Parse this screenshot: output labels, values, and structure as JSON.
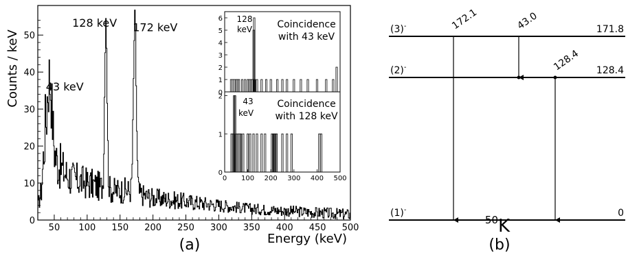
{
  "panel_a": {
    "caption": "(a)",
    "chart_data": {
      "type": "line",
      "xlabel": "Energy (keV)",
      "ylabel": "Counts / keV",
      "xlim": [
        25,
        500
      ],
      "ylim": [
        0,
        58
      ],
      "xticks": [
        50,
        100,
        150,
        200,
        250,
        300,
        350,
        400,
        450,
        500
      ],
      "yticks": [
        0,
        10,
        20,
        30,
        40,
        50
      ],
      "annotations": [
        {
          "text": "43 keV",
          "x": 43,
          "y": 38
        },
        {
          "text": "128 keV",
          "x": 128,
          "y": 56
        },
        {
          "text": "172 keV",
          "x": 172,
          "y": 54
        }
      ],
      "peaks": [
        {
          "x": 43,
          "y": 38,
          "width": 5
        },
        {
          "x": 128,
          "y": 56,
          "width": 2.5
        },
        {
          "x": 172,
          "y": 54,
          "width": 3
        }
      ],
      "background": [
        [
          25,
          4
        ],
        [
          30,
          8
        ],
        [
          35,
          22
        ],
        [
          40,
          26
        ],
        [
          45,
          20
        ],
        [
          50,
          17
        ],
        [
          60,
          14
        ],
        [
          70,
          12
        ],
        [
          80,
          11
        ],
        [
          100,
          10
        ],
        [
          120,
          9
        ],
        [
          140,
          8
        ],
        [
          160,
          8
        ],
        [
          180,
          7
        ],
        [
          200,
          6
        ],
        [
          250,
          5
        ],
        [
          300,
          4
        ],
        [
          350,
          3
        ],
        [
          400,
          2.5
        ],
        [
          450,
          2
        ],
        [
          500,
          1.5
        ]
      ]
    },
    "insets": [
      {
        "title_line1": "Coincidence",
        "title_line2": "with 43 keV",
        "peak_label": "128",
        "peak_label2": "keV",
        "chart_data": {
          "type": "bar",
          "xlim": [
            0,
            500
          ],
          "ylim": [
            0,
            6.5
          ],
          "yticks": [
            0,
            1,
            2,
            3,
            4,
            5,
            6
          ],
          "xticks": [],
          "bars": [
            {
              "x": 28,
              "y": 1
            },
            {
              "x": 35,
              "y": 1
            },
            {
              "x": 42,
              "y": 1
            },
            {
              "x": 50,
              "y": 1
            },
            {
              "x": 56,
              "y": 1
            },
            {
              "x": 62,
              "y": 1
            },
            {
              "x": 76,
              "y": 1
            },
            {
              "x": 88,
              "y": 1
            },
            {
              "x": 100,
              "y": 1
            },
            {
              "x": 106,
              "y": 1
            },
            {
              "x": 114,
              "y": 1
            },
            {
              "x": 120,
              "y": 1
            },
            {
              "x": 126,
              "y": 5
            },
            {
              "x": 128,
              "y": 6
            },
            {
              "x": 130,
              "y": 1
            },
            {
              "x": 140,
              "y": 1
            },
            {
              "x": 160,
              "y": 1
            },
            {
              "x": 180,
              "y": 1
            },
            {
              "x": 200,
              "y": 1
            },
            {
              "x": 228,
              "y": 1
            },
            {
              "x": 250,
              "y": 1
            },
            {
              "x": 270,
              "y": 1
            },
            {
              "x": 300,
              "y": 1
            },
            {
              "x": 330,
              "y": 1
            },
            {
              "x": 360,
              "y": 1
            },
            {
              "x": 400,
              "y": 1
            },
            {
              "x": 440,
              "y": 1
            },
            {
              "x": 470,
              "y": 1
            },
            {
              "x": 485,
              "y": 2
            }
          ]
        }
      },
      {
        "title_line1": "Coincidence",
        "title_line2": "with 128 keV",
        "peak_label": "43",
        "peak_label2": "keV",
        "chart_data": {
          "type": "bar",
          "xlim": [
            0,
            500
          ],
          "ylim": [
            0,
            2.1
          ],
          "yticks": [
            0,
            1,
            2
          ],
          "xticks": [
            0,
            100,
            200,
            300,
            400,
            500
          ],
          "bars": [
            {
              "x": 30,
              "y": 1
            },
            {
              "x": 36,
              "y": 1
            },
            {
              "x": 41,
              "y": 2
            },
            {
              "x": 45,
              "y": 2
            },
            {
              "x": 50,
              "y": 1
            },
            {
              "x": 58,
              "y": 1
            },
            {
              "x": 65,
              "y": 1
            },
            {
              "x": 70,
              "y": 1
            },
            {
              "x": 80,
              "y": 1
            },
            {
              "x": 100,
              "y": 1
            },
            {
              "x": 110,
              "y": 1
            },
            {
              "x": 125,
              "y": 1
            },
            {
              "x": 140,
              "y": 1
            },
            {
              "x": 160,
              "y": 1
            },
            {
              "x": 175,
              "y": 1
            },
            {
              "x": 205,
              "y": 1
            },
            {
              "x": 210,
              "y": 1
            },
            {
              "x": 215,
              "y": 1
            },
            {
              "x": 220,
              "y": 1
            },
            {
              "x": 225,
              "y": 1
            },
            {
              "x": 250,
              "y": 1
            },
            {
              "x": 270,
              "y": 1
            },
            {
              "x": 290,
              "y": 1
            },
            {
              "x": 410,
              "y": 1
            },
            {
              "x": 418,
              "y": 1
            }
          ]
        }
      }
    ]
  },
  "panel_b": {
    "caption": "(b)",
    "nucleus_mass": "50",
    "nucleus_symbol": "K",
    "levels": [
      {
        "spin": "(3)",
        "parity": "-",
        "energy": "171.8",
        "value": 171.8
      },
      {
        "spin": "(2)",
        "parity": "-",
        "energy": "128.4",
        "value": 128.4
      },
      {
        "spin": "(1)",
        "parity": "-",
        "energy": "0",
        "value": 0
      }
    ],
    "transitions": [
      {
        "label": "172.1",
        "from": 171.8,
        "to": 0
      },
      {
        "label": "43.0",
        "from": 171.8,
        "to": 128.4
      },
      {
        "label": "128.4",
        "from": 128.4,
        "to": 0
      }
    ]
  }
}
